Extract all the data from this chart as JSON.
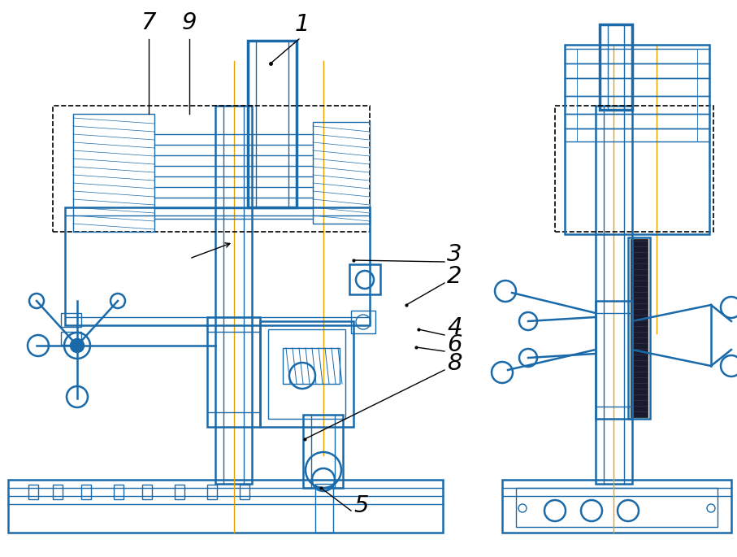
{
  "bg_color": "#ffffff",
  "draw_color": "#1a6aaa",
  "line_color": "#000000",
  "orange_color": "#e8a000",
  "figsize": [
    9.07,
    6.85
  ],
  "dpi": 100
}
